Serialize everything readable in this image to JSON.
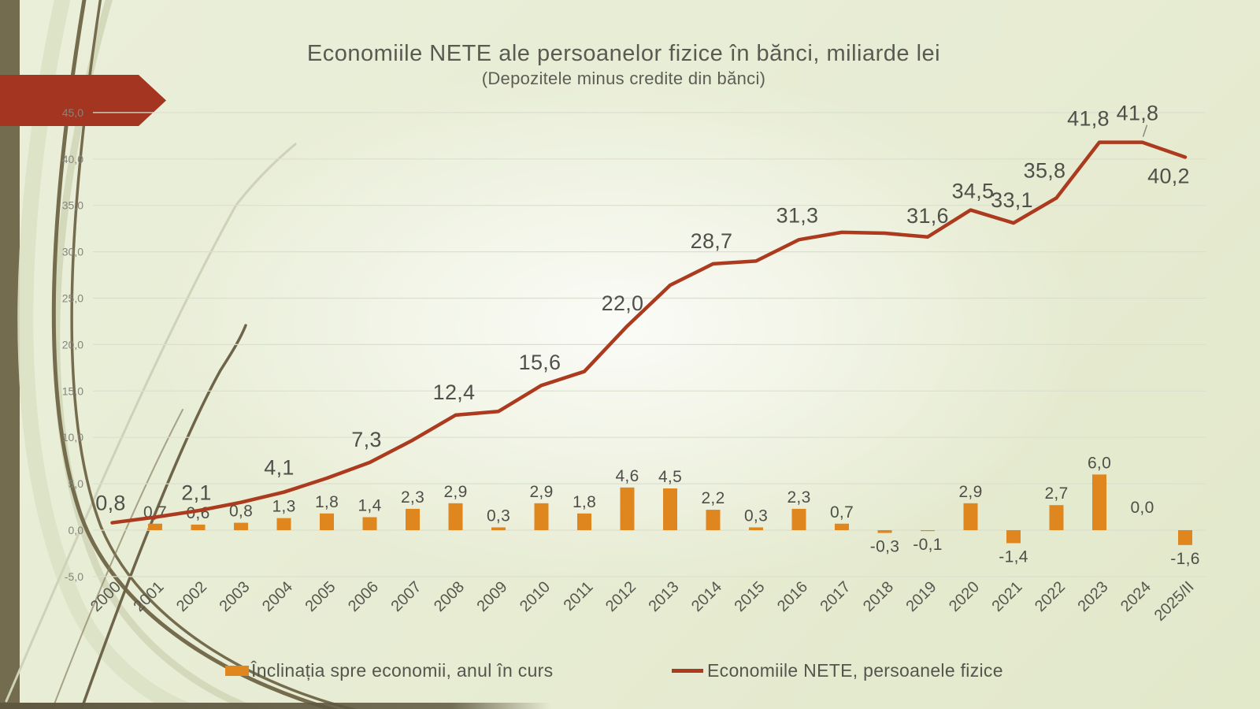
{
  "slide": {
    "title": "Economiile NETE ale persoanelor fizice în bănci, miliarde lei",
    "subtitle": "(Depozitele minus credite din bănci)"
  },
  "colors": {
    "bar": "#E0861E",
    "line": "#AB3A1E",
    "arrow": "#A43520",
    "strip": "#746C4F",
    "gridline": "#dbdfcd",
    "bottom_band": "#5f5740"
  },
  "legend": {
    "bar_label": "Înclinația spre economii, anul în curs",
    "line_label": "Economiile NETE, persoanele fizice"
  },
  "chart_data": {
    "type": "bar",
    "subtype": "bar-and-line combo",
    "title": "Economiile NETE ale persoanelor fizice în bănci, miliarde lei",
    "subtitle": "(Depozitele minus credite din bănci)",
    "xlabel": "",
    "ylabel": "",
    "ylim": [
      -5,
      45
    ],
    "y_ticks": [
      {
        "value": 45,
        "label": "45,0"
      },
      {
        "value": 40,
        "label": "40,0"
      },
      {
        "value": 35,
        "label": "35,0"
      },
      {
        "value": 30,
        "label": "30,0"
      },
      {
        "value": 25,
        "label": "25,0"
      },
      {
        "value": 20,
        "label": "20,0"
      },
      {
        "value": 15,
        "label": "15,0"
      },
      {
        "value": 10,
        "label": "10,0"
      },
      {
        "value": 5,
        "label": "5,0"
      },
      {
        "value": 0,
        "label": "0,0"
      },
      {
        "value": -5,
        "label": "-5,0"
      }
    ],
    "categories": [
      "2000",
      "2001",
      "2002",
      "2003",
      "2004",
      "2005",
      "2006",
      "2007",
      "2008",
      "2009",
      "2010",
      "2011",
      "2012",
      "2013",
      "2014",
      "2015",
      "2016",
      "2017",
      "2018",
      "2019",
      "2020",
      "2021",
      "2022",
      "2023",
      "2024",
      "2025/II"
    ],
    "series": [
      {
        "name": "Înclinația spre economii, anul în curs",
        "type": "bar",
        "color": "#E0861E",
        "values": [
          null,
          0.7,
          0.6,
          0.8,
          1.3,
          1.8,
          1.4,
          2.3,
          2.9,
          0.3,
          2.9,
          1.8,
          4.6,
          4.5,
          2.2,
          0.3,
          2.3,
          0.7,
          -0.3,
          -0.1,
          2.9,
          -1.4,
          2.7,
          6.0,
          0.0,
          -1.6
        ],
        "labels": [
          null,
          "0,7",
          "0,6",
          "0,8",
          "1,3",
          "1,8",
          "1,4",
          "2,3",
          "2,9",
          "0,3",
          "2,9",
          "1,8",
          "4,6",
          "4,5",
          "2,2",
          "0,3",
          "2,3",
          "0,7",
          "-0,3",
          "-0,1",
          "2,9",
          "-1,4",
          "2,7",
          "6,0",
          "0,0",
          "-1,6"
        ]
      },
      {
        "name": "Economiile NETE, persoanele fizice",
        "type": "line",
        "color": "#AB3A1E",
        "values": [
          0.8,
          1.4,
          2.1,
          3.0,
          4.1,
          5.6,
          7.3,
          9.7,
          12.4,
          12.8,
          15.6,
          17.1,
          22.0,
          26.4,
          28.7,
          29.0,
          31.3,
          32.1,
          32.0,
          31.6,
          34.5,
          33.1,
          35.8,
          41.8,
          41.8,
          40.2
        ],
        "labeled_points": [
          {
            "index": 0,
            "text": "0,8"
          },
          {
            "index": 2,
            "text": "2,1"
          },
          {
            "index": 4,
            "text": "4,1"
          },
          {
            "index": 6,
            "text": "7,3"
          },
          {
            "index": 8,
            "text": "12,4"
          },
          {
            "index": 10,
            "text": "15,6"
          },
          {
            "index": 12,
            "text": "22,0"
          },
          {
            "index": 14,
            "text": "28,7"
          },
          {
            "index": 16,
            "text": "31,3"
          },
          {
            "index": 19,
            "text": "31,6"
          },
          {
            "index": 20,
            "text": "34,5"
          },
          {
            "index": 21,
            "text": "33,1"
          },
          {
            "index": 22,
            "text": "35,8"
          },
          {
            "index": 23,
            "text": "41,8"
          },
          {
            "index": 24,
            "text": "41,8",
            "leader": true
          },
          {
            "index": 25,
            "text": "40,2"
          }
        ]
      }
    ],
    "grid": "horizontal gridlines on",
    "legend_position": "bottom center"
  }
}
